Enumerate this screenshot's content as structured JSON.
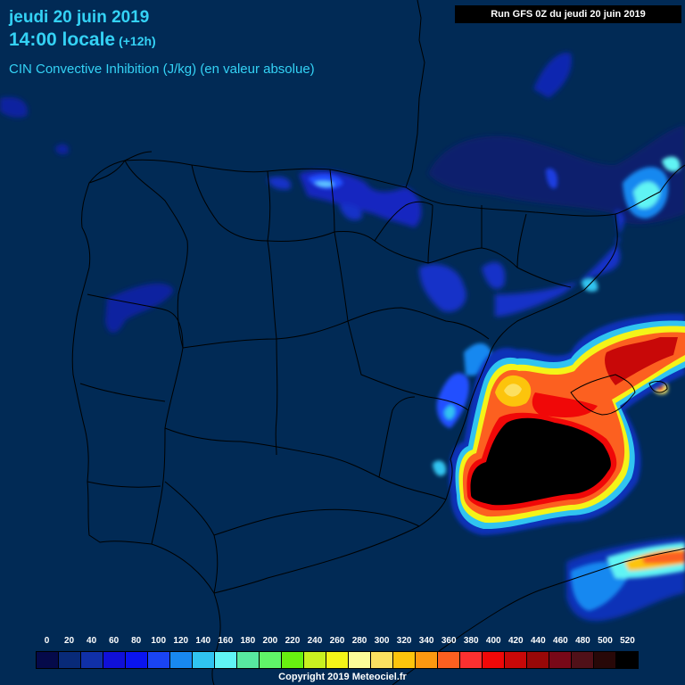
{
  "header": {
    "date": "jeudi 20 juin 2019",
    "time": "14:00 locale",
    "offset": "(+12h)",
    "parameter": "CIN Convective Inhibition (J/kg) (en valeur absolue)",
    "run": "Run GFS 0Z du jeudi 20 juin 2019"
  },
  "legend": {
    "labels": [
      "0",
      "20",
      "40",
      "60",
      "80",
      "100",
      "120",
      "140",
      "160",
      "180",
      "200",
      "220",
      "240",
      "260",
      "280",
      "300",
      "320",
      "340",
      "360",
      "380",
      "400",
      "420",
      "440",
      "460",
      "480",
      "500",
      "520"
    ],
    "colors": [
      "#050a4a",
      "#082a78",
      "#1030a8",
      "#1010d8",
      "#0a14f0",
      "#1a44f4",
      "#1888f0",
      "#30c4f0",
      "#60f4f4",
      "#58e8a0",
      "#60f468",
      "#68f010",
      "#c8f020",
      "#f4f418",
      "#fcfc98",
      "#fce060",
      "#fcc40c",
      "#fc9810",
      "#fc6020",
      "#fc3030",
      "#f00808",
      "#c80808",
      "#980808",
      "#780818",
      "#501018",
      "#280808",
      "#000000"
    ]
  },
  "copyright": "Copyright 2019 Meteociel.fr"
}
